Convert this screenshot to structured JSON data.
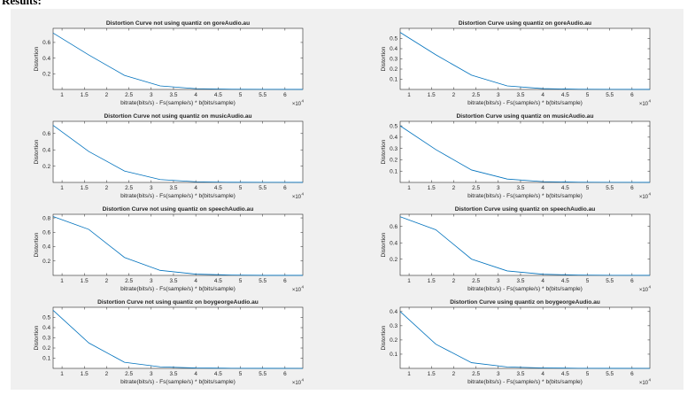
{
  "page": {
    "heading": "Results:"
  },
  "chart_data": [
    {
      "type": "line",
      "title": "Distortion Curve not using quantiz on goreAudio.au",
      "xlabel": "bitrate(bits/s) - Fs(sample/s) * b(bits/sample)",
      "ylabel": "Distortion",
      "x_multiplier": "×10",
      "x_multiplier_exp": "4",
      "xlim": [
        0.8,
        6.4
      ],
      "ylim": [
        0,
        0.78
      ],
      "xticks": [
        1,
        1.5,
        2,
        2.5,
        3,
        3.5,
        4,
        4.5,
        5,
        5.5,
        6
      ],
      "yticks": [
        0.2,
        0.4,
        0.6
      ],
      "line_color": "#0072bd",
      "series": [
        {
          "x": [
            0.8,
            1.6,
            2.4,
            3.2,
            4.0,
            4.8,
            5.6,
            6.4
          ],
          "y": [
            0.72,
            0.44,
            0.18,
            0.045,
            0.01,
            0.003,
            0.001,
            0.0005
          ]
        }
      ]
    },
    {
      "type": "line",
      "title": "Distortion Curve using quantiz on goreAudio.au",
      "xlabel": "bitrate(bits/s) - Fs(sample/s) * b(bits/sample)",
      "ylabel": "Distortion",
      "x_multiplier": "×10",
      "x_multiplier_exp": "4",
      "xlim": [
        0.8,
        6.4
      ],
      "ylim": [
        0,
        0.6
      ],
      "xticks": [
        1,
        1.5,
        2,
        2.5,
        3,
        3.5,
        4,
        4.5,
        5,
        5.5,
        6
      ],
      "yticks": [
        0.1,
        0.2,
        0.3,
        0.4,
        0.5
      ],
      "line_color": "#0072bd",
      "series": [
        {
          "x": [
            0.8,
            1.6,
            2.4,
            3.2,
            4.0,
            4.8,
            5.6,
            6.4
          ],
          "y": [
            0.56,
            0.34,
            0.14,
            0.035,
            0.008,
            0.002,
            0.001,
            0.0005
          ]
        }
      ]
    },
    {
      "type": "line",
      "title": "Distortion Curve not using quantiz on musicAudio.au",
      "xlabel": "bitrate(bits/s) - Fs(sample/s) * b(bits/sample)",
      "ylabel": "Distortion",
      "x_multiplier": "×10",
      "x_multiplier_exp": "4",
      "xlim": [
        0.8,
        6.4
      ],
      "ylim": [
        0,
        0.75
      ],
      "xticks": [
        1,
        1.5,
        2,
        2.5,
        3,
        3.5,
        4,
        4.5,
        5,
        5.5,
        6
      ],
      "yticks": [
        0.2,
        0.4,
        0.6
      ],
      "line_color": "#0072bd",
      "series": [
        {
          "x": [
            0.8,
            1.6,
            2.4,
            3.2,
            4.0,
            4.8,
            5.6,
            6.4
          ],
          "y": [
            0.7,
            0.38,
            0.14,
            0.035,
            0.008,
            0.002,
            0.001,
            0.0005
          ]
        }
      ]
    },
    {
      "type": "line",
      "title": "Distortion Curve using quantiz on musicAudio.au",
      "xlabel": "bitrate(bits/s) - Fs(sample/s) * b(bits/sample)",
      "ylabel": "Distortion",
      "x_multiplier": "×10",
      "x_multiplier_exp": "4",
      "xlim": [
        0.8,
        6.4
      ],
      "ylim": [
        0,
        0.54
      ],
      "xticks": [
        1,
        1.5,
        2,
        2.5,
        3,
        3.5,
        4,
        4.5,
        5,
        5.5,
        6
      ],
      "yticks": [
        0.1,
        0.2,
        0.3,
        0.4,
        0.5
      ],
      "line_color": "#0072bd",
      "series": [
        {
          "x": [
            0.8,
            1.6,
            2.4,
            3.2,
            4.0,
            4.8,
            5.6,
            6.4
          ],
          "y": [
            0.5,
            0.29,
            0.11,
            0.03,
            0.007,
            0.002,
            0.001,
            0.0005
          ]
        }
      ]
    },
    {
      "type": "line",
      "title": "Distortion Curve not using quantiz on speechAudio.au",
      "xlabel": "bitrate(bits/s) - Fs(sample/s) * b(bits/sample)",
      "ylabel": "Distortion",
      "x_multiplier": "×10",
      "x_multiplier_exp": "4",
      "xlim": [
        0.8,
        6.4
      ],
      "ylim": [
        0,
        0.85
      ],
      "xticks": [
        1,
        1.5,
        2,
        2.5,
        3,
        3.5,
        4,
        4.5,
        5,
        5.5,
        6
      ],
      "yticks": [
        0.2,
        0.4,
        0.6,
        0.8
      ],
      "line_color": "#0072bd",
      "series": [
        {
          "x": [
            0.8,
            1.6,
            2.4,
            3.2,
            4.0,
            4.8,
            5.6,
            6.4
          ],
          "y": [
            0.82,
            0.64,
            0.25,
            0.07,
            0.018,
            0.005,
            0.001,
            0.0005
          ]
        }
      ]
    },
    {
      "type": "line",
      "title": "Distortion Curve using quantiz on speechAudio.au",
      "xlabel": "bitrate(bits/s) - Fs(sample/s) * b(bits/sample)",
      "ylabel": "Distortion",
      "x_multiplier": "×10",
      "x_multiplier_exp": "4",
      "xlim": [
        0.8,
        6.4
      ],
      "ylim": [
        0,
        0.75
      ],
      "xticks": [
        1,
        1.5,
        2,
        2.5,
        3,
        3.5,
        4,
        4.5,
        5,
        5.5,
        6
      ],
      "yticks": [
        0.2,
        0.4,
        0.6
      ],
      "line_color": "#0072bd",
      "series": [
        {
          "x": [
            0.8,
            1.6,
            2.4,
            3.2,
            4.0,
            4.8,
            5.6,
            6.4
          ],
          "y": [
            0.72,
            0.56,
            0.2,
            0.055,
            0.014,
            0.004,
            0.001,
            0.0005
          ]
        }
      ]
    },
    {
      "type": "line",
      "title": "Distortion Curve not using quantiz on boygeorgeAudio.au",
      "xlabel": "bitrate(bits/s) - Fs(sample/s) * b(bits/sample)",
      "ylabel": "Distortion",
      "x_multiplier": "×10",
      "x_multiplier_exp": "4",
      "xlim": [
        0.8,
        6.4
      ],
      "ylim": [
        0,
        0.6
      ],
      "xticks": [
        1,
        1.5,
        2,
        2.5,
        3,
        3.5,
        4,
        4.5,
        5,
        5.5,
        6
      ],
      "yticks": [
        0.1,
        0.2,
        0.3,
        0.4,
        0.5
      ],
      "line_color": "#0072bd",
      "series": [
        {
          "x": [
            0.8,
            1.6,
            2.4,
            3.2,
            4.0,
            4.8,
            5.6,
            6.4
          ],
          "y": [
            0.57,
            0.25,
            0.06,
            0.015,
            0.004,
            0.001,
            0.0005,
            0.0002
          ]
        }
      ]
    },
    {
      "type": "line",
      "title": "Distortion Curve using quantiz on boygeorgeAudio.au",
      "xlabel": "bitrate(bits/s) - Fs(sample/s) * b(bits/sample)",
      "ylabel": "Distortion",
      "x_multiplier": "×10",
      "x_multiplier_exp": "4",
      "xlim": [
        0.8,
        6.4
      ],
      "ylim": [
        0,
        0.43
      ],
      "xticks": [
        1,
        1.5,
        2,
        2.5,
        3,
        3.5,
        4,
        4.5,
        5,
        5.5,
        6
      ],
      "yticks": [
        0.1,
        0.2,
        0.3,
        0.4
      ],
      "line_color": "#0072bd",
      "series": [
        {
          "x": [
            0.8,
            1.6,
            2.4,
            3.2,
            4.0,
            4.8,
            5.6,
            6.4
          ],
          "y": [
            0.4,
            0.17,
            0.04,
            0.01,
            0.003,
            0.001,
            0.0005,
            0.0002
          ]
        }
      ]
    }
  ]
}
